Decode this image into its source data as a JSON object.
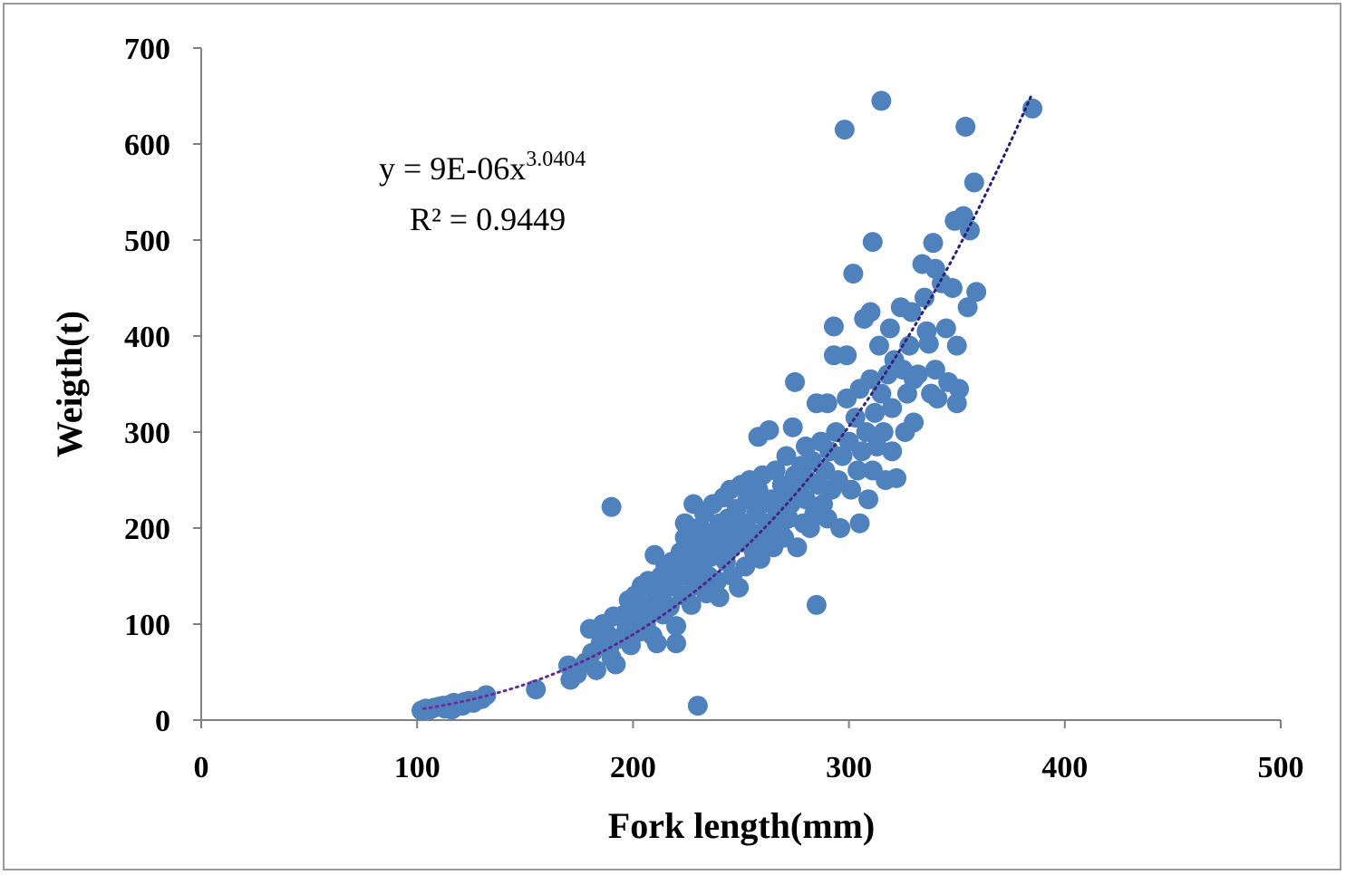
{
  "chart_data": {
    "type": "scatter",
    "title": "",
    "xlabel": "Fork length(mm)",
    "ylabel": "Weigth(t)",
    "xlim": [
      0,
      500
    ],
    "ylim": [
      0,
      700
    ],
    "x_ticks": [
      "0",
      "100",
      "200",
      "300",
      "400",
      "500"
    ],
    "y_ticks": [
      "0",
      "100",
      "200",
      "300",
      "400",
      "500",
      "600",
      "700"
    ],
    "grid": false,
    "legend": "none",
    "marker_color": "#4f81bd",
    "trendline": {
      "type": "power",
      "coefficient": 9e-06,
      "exponent": 3.0404,
      "x_range": [
        103,
        385
      ],
      "equation_prefix": "y = 9E-06x",
      "equation_exponent": "3.0404",
      "r_squared_label": "R² = 0.9449",
      "colors": [
        "#7030a0",
        "#1f1f6e"
      ]
    },
    "series": [
      {
        "points": [
          [
            102,
            10
          ],
          [
            104,
            12
          ],
          [
            106,
            11
          ],
          [
            108,
            13
          ],
          [
            110,
            14
          ],
          [
            112,
            15
          ],
          [
            113,
            12
          ],
          [
            115,
            16
          ],
          [
            116,
            11
          ],
          [
            117,
            18
          ],
          [
            118,
            14
          ],
          [
            120,
            17
          ],
          [
            121,
            15
          ],
          [
            122,
            19
          ],
          [
            124,
            20
          ],
          [
            126,
            18
          ],
          [
            128,
            21
          ],
          [
            130,
            22
          ],
          [
            132,
            26
          ],
          [
            155,
            32
          ],
          [
            170,
            57
          ],
          [
            171,
            42
          ],
          [
            174,
            48
          ],
          [
            178,
            60
          ],
          [
            180,
            95
          ],
          [
            181,
            70
          ],
          [
            183,
            52
          ],
          [
            185,
            80
          ],
          [
            186,
            100
          ],
          [
            188,
            90
          ],
          [
            189,
            75
          ],
          [
            190,
            222
          ],
          [
            190,
            65
          ],
          [
            191,
            108
          ],
          [
            192,
            58
          ],
          [
            194,
            85
          ],
          [
            196,
            110
          ],
          [
            197,
            95
          ],
          [
            198,
            125
          ],
          [
            199,
            78
          ],
          [
            200,
            102
          ],
          [
            201,
            130
          ],
          [
            202,
            112
          ],
          [
            203,
            92
          ],
          [
            204,
            140
          ],
          [
            205,
            120
          ],
          [
            206,
            100
          ],
          [
            207,
            145
          ],
          [
            208,
            115
          ],
          [
            209,
            88
          ],
          [
            210,
            172
          ],
          [
            210,
            135
          ],
          [
            211,
            80
          ],
          [
            212,
            125
          ],
          [
            213,
            150
          ],
          [
            214,
            110
          ],
          [
            215,
            160
          ],
          [
            216,
            138
          ],
          [
            217,
            118
          ],
          [
            218,
            165
          ],
          [
            219,
            145
          ],
          [
            220,
            98
          ],
          [
            220,
            80
          ],
          [
            221,
            155
          ],
          [
            222,
            175
          ],
          [
            223,
            130
          ],
          [
            224,
            190
          ],
          [
            224,
            205
          ],
          [
            225,
            150
          ],
          [
            226,
            168
          ],
          [
            227,
            120
          ],
          [
            228,
            185
          ],
          [
            228,
            225
          ],
          [
            229,
            140
          ],
          [
            230,
            15
          ],
          [
            230,
            200
          ],
          [
            231,
            160
          ],
          [
            232,
            178
          ],
          [
            233,
            215
          ],
          [
            234,
            132
          ],
          [
            235,
            195
          ],
          [
            235,
            150
          ],
          [
            236,
            170
          ],
          [
            237,
            225
          ],
          [
            238,
            182
          ],
          [
            239,
            145
          ],
          [
            240,
            205
          ],
          [
            240,
            128
          ],
          [
            241,
            188
          ],
          [
            242,
            232
          ],
          [
            243,
            165
          ],
          [
            244,
            210
          ],
          [
            245,
            240
          ],
          [
            245,
            178
          ],
          [
            246,
            150
          ],
          [
            247,
            198
          ],
          [
            248,
            220
          ],
          [
            249,
            138
          ],
          [
            250,
            245
          ],
          [
            250,
            185
          ],
          [
            251,
            205
          ],
          [
            252,
            160
          ],
          [
            253,
            230
          ],
          [
            254,
            250
          ],
          [
            255,
            195
          ],
          [
            256,
            175
          ],
          [
            257,
            215
          ],
          [
            258,
            295
          ],
          [
            258,
            240
          ],
          [
            259,
            168
          ],
          [
            260,
            225
          ],
          [
            260,
            255
          ],
          [
            261,
            188
          ],
          [
            262,
            205
          ],
          [
            263,
            302
          ],
          [
            264,
            230
          ],
          [
            265,
            180
          ],
          [
            266,
            260
          ],
          [
            267,
            215
          ],
          [
            268,
            198
          ],
          [
            269,
            245
          ],
          [
            270,
            235
          ],
          [
            270,
            190
          ],
          [
            271,
            275
          ],
          [
            272,
            210
          ],
          [
            273,
            225
          ],
          [
            274,
            305
          ],
          [
            275,
            352
          ],
          [
            275,
            255
          ],
          [
            276,
            180
          ],
          [
            277,
            240
          ],
          [
            278,
            265
          ],
          [
            279,
            205
          ],
          [
            280,
            285
          ],
          [
            280,
            230
          ],
          [
            281,
            250
          ],
          [
            282,
            200
          ],
          [
            283,
            270
          ],
          [
            284,
            215
          ],
          [
            285,
            120
          ],
          [
            285,
            330
          ],
          [
            286,
            245
          ],
          [
            287,
            290
          ],
          [
            288,
            225
          ],
          [
            289,
            260
          ],
          [
            290,
            330
          ],
          [
            290,
            210
          ],
          [
            291,
            280
          ],
          [
            292,
            240
          ],
          [
            293,
            410
          ],
          [
            293,
            380
          ],
          [
            294,
            300
          ],
          [
            295,
            250
          ],
          [
            296,
            200
          ],
          [
            297,
            275
          ],
          [
            298,
            615
          ],
          [
            299,
            380
          ],
          [
            299,
            335
          ],
          [
            300,
            290
          ],
          [
            301,
            240
          ],
          [
            302,
            465
          ],
          [
            303,
            315
          ],
          [
            304,
            260
          ],
          [
            305,
            345
          ],
          [
            305,
            205
          ],
          [
            306,
            280
          ],
          [
            307,
            418
          ],
          [
            308,
            300
          ],
          [
            309,
            230
          ],
          [
            310,
            425
          ],
          [
            310,
            355
          ],
          [
            311,
            498
          ],
          [
            311,
            260
          ],
          [
            312,
            320
          ],
          [
            313,
            285
          ],
          [
            314,
            390
          ],
          [
            315,
            645
          ],
          [
            315,
            340
          ],
          [
            316,
            300
          ],
          [
            317,
            250
          ],
          [
            318,
            360
          ],
          [
            319,
            408
          ],
          [
            320,
            325
          ],
          [
            320,
            280
          ],
          [
            321,
            375
          ],
          [
            322,
            252
          ],
          [
            324,
            430
          ],
          [
            325,
            365
          ],
          [
            326,
            300
          ],
          [
            327,
            340
          ],
          [
            328,
            390
          ],
          [
            329,
            425
          ],
          [
            330,
            310
          ],
          [
            330,
            355
          ],
          [
            332,
            360
          ],
          [
            334,
            475
          ],
          [
            335,
            440
          ],
          [
            336,
            405
          ],
          [
            337,
            392
          ],
          [
            338,
            340
          ],
          [
            339,
            497
          ],
          [
            340,
            470
          ],
          [
            340,
            365
          ],
          [
            341,
            335
          ],
          [
            343,
            455
          ],
          [
            345,
            408
          ],
          [
            346,
            352
          ],
          [
            348,
            450
          ],
          [
            349,
            520
          ],
          [
            350,
            390
          ],
          [
            350,
            330
          ],
          [
            351,
            345
          ],
          [
            353,
            525
          ],
          [
            354,
            618
          ],
          [
            355,
            430
          ],
          [
            356,
            510
          ],
          [
            358,
            560
          ],
          [
            359,
            446
          ],
          [
            385,
            637
          ]
        ]
      }
    ]
  }
}
